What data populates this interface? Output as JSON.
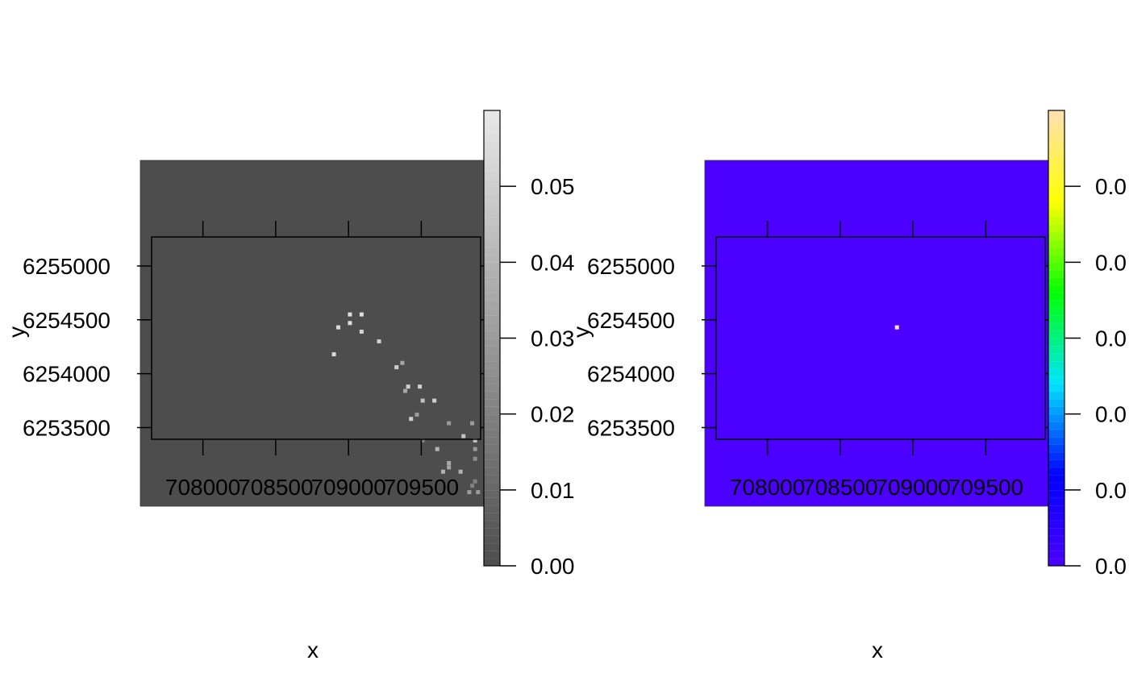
{
  "chart_data": [
    {
      "type": "heatmap",
      "panel": "left",
      "palette": "grey",
      "xlabel": "x",
      "ylabel": "y",
      "x_ticks": [
        708000,
        708500,
        709000,
        709500
      ],
      "x_tick_labels": [
        "708000",
        "708500",
        "709000",
        "709500"
      ],
      "y_ticks": [
        6253500,
        6254000,
        6254500,
        6255000
      ],
      "y_tick_labels": [
        "6253500",
        "6254000",
        "6254500",
        "6255000"
      ],
      "xlim": [
        707570,
        709930
      ],
      "ylim": [
        6252770,
        6255980
      ],
      "raster_extent": {
        "x": [
          707570,
          709930
        ],
        "y": [
          6252770,
          6255980
        ]
      },
      "background_value": 0,
      "colorbar": {
        "range": [
          0,
          0.06
        ],
        "ticks": [
          0,
          0.01,
          0.02,
          0.03,
          0.04,
          0.05
        ],
        "tick_labels": [
          "0.00",
          "0.01",
          "0.02",
          "0.03",
          "0.04",
          "0.05"
        ],
        "colors": [
          "#4d4d4d",
          "#e8e8e8"
        ]
      },
      "cells": [
        {
          "x": 709010,
          "y": 6254550,
          "v": 0.056
        },
        {
          "x": 709090,
          "y": 6254550,
          "v": 0.056
        },
        {
          "x": 709010,
          "y": 6254470,
          "v": 0.056
        },
        {
          "x": 708930,
          "y": 6254430,
          "v": 0.054
        },
        {
          "x": 709090,
          "y": 6254390,
          "v": 0.052
        },
        {
          "x": 709210,
          "y": 6254300,
          "v": 0.05
        },
        {
          "x": 708900,
          "y": 6254180,
          "v": 0.054
        },
        {
          "x": 709330,
          "y": 6254060,
          "v": 0.05
        },
        {
          "x": 709370,
          "y": 6254100,
          "v": 0.035
        },
        {
          "x": 709410,
          "y": 6253880,
          "v": 0.05
        },
        {
          "x": 709490,
          "y": 6253880,
          "v": 0.05
        },
        {
          "x": 709390,
          "y": 6253840,
          "v": 0.035
        },
        {
          "x": 709510,
          "y": 6253750,
          "v": 0.045
        },
        {
          "x": 709590,
          "y": 6253750,
          "v": 0.05
        },
        {
          "x": 709430,
          "y": 6253580,
          "v": 0.05
        },
        {
          "x": 709470,
          "y": 6253620,
          "v": 0.03
        },
        {
          "x": 709690,
          "y": 6253540,
          "v": 0.03
        },
        {
          "x": 709850,
          "y": 6253540,
          "v": 0.03
        },
        {
          "x": 709510,
          "y": 6253380,
          "v": 0.02
        },
        {
          "x": 709790,
          "y": 6253420,
          "v": 0.045
        },
        {
          "x": 709870,
          "y": 6253380,
          "v": 0.045
        },
        {
          "x": 709610,
          "y": 6253300,
          "v": 0.04
        },
        {
          "x": 709870,
          "y": 6253300,
          "v": 0.03
        },
        {
          "x": 709870,
          "y": 6253210,
          "v": 0.025
        },
        {
          "x": 709690,
          "y": 6253170,
          "v": 0.035
        },
        {
          "x": 709690,
          "y": 6253130,
          "v": 0.035
        },
        {
          "x": 709650,
          "y": 6253090,
          "v": 0.04
        },
        {
          "x": 709770,
          "y": 6253090,
          "v": 0.04
        },
        {
          "x": 709850,
          "y": 6252960,
          "v": 0.02
        },
        {
          "x": 709830,
          "y": 6252900,
          "v": 0.03
        },
        {
          "x": 709890,
          "y": 6252900,
          "v": 0.03
        },
        {
          "x": 709870,
          "y": 6253000,
          "v": 0.02
        }
      ]
    },
    {
      "type": "heatmap",
      "panel": "right",
      "palette": "rainbow",
      "xlabel": "x",
      "ylabel": "y",
      "x_ticks": [
        708000,
        708500,
        709000,
        709500
      ],
      "x_tick_labels": [
        "708000",
        "708500",
        "709000",
        "709500"
      ],
      "y_ticks": [
        6253500,
        6254000,
        6254500,
        6255000
      ],
      "y_tick_labels": [
        "6253500",
        "6254000",
        "6254500",
        "6255000"
      ],
      "xlim": [
        707570,
        709930
      ],
      "ylim": [
        6252770,
        6255980
      ],
      "raster_extent": {
        "x": [
          707570,
          709930
        ],
        "y": [
          6252770,
          6255980
        ]
      },
      "background_value": 0,
      "colorbar": {
        "range": [
          0,
          0.06
        ],
        "ticks": [
          0,
          0.01,
          0.02,
          0.03,
          0.04,
          0.05
        ],
        "tick_labels": [
          "0.0",
          "0.0",
          "0.0",
          "0.0",
          "0.0",
          "0.0"
        ],
        "colors": [
          "#4c00ff",
          "#0000ff",
          "#00e5ff",
          "#00ff00",
          "#ffff00",
          "#ffe0b3"
        ]
      },
      "cells": [
        {
          "x": 708890,
          "y": 6254430,
          "v": 0.06
        }
      ]
    }
  ]
}
